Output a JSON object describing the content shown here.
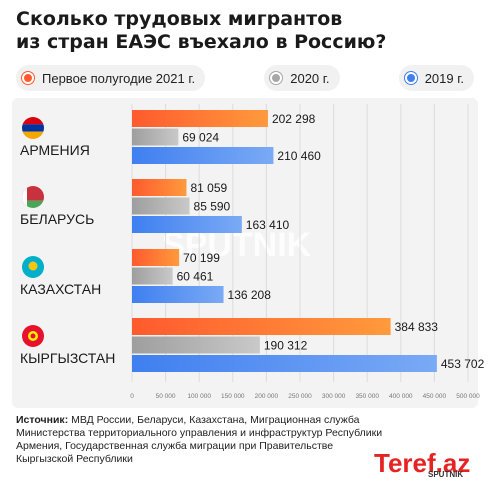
{
  "title": {
    "line1": "Сколько трудовых мигрантов",
    "line2": "из стран ЕАЭС въехало в Россию?"
  },
  "legend": [
    {
      "label": "Первое полугодие 2021 г.",
      "color": "#ff5a2e"
    },
    {
      "label": "2020 г.",
      "color": "#a7a7a7"
    },
    {
      "label": "2019 г.",
      "color": "#3f7ff0"
    }
  ],
  "colors": {
    "series_2021": "#ff5a2e",
    "series_2021_light": "#ff9a3c",
    "series_2020": "#9e9e9e",
    "series_2020_light": "#c9c9c9",
    "series_2019": "#3f7ff0",
    "series_2019_light": "#7aaaf5"
  },
  "watermark": "SPUTNIK",
  "source": {
    "label": "Источник:",
    "text": "МВД России, Беларуси, Казахстана, Миграционная служба Министерства территориального управления и инфраструктур Республики Армения, Государственная служба миграции при Правительстве Кыргызской Республики"
  },
  "logo": {
    "brand": "Teref.az",
    "sub": "SPUTNIK"
  },
  "chart_data": {
    "type": "bar",
    "orientation": "horizontal",
    "categories": [
      "АРМЕНИЯ",
      "БЕЛАРУСЬ",
      "КАЗАХСТАН",
      "КЫРГЫЗСТАН"
    ],
    "flags": [
      "armenia-flag-icon",
      "belarus-flag-icon",
      "kazakhstan-flag-icon",
      "kyrgyzstan-flag-icon"
    ],
    "series": [
      {
        "name": "Первое полугодие 2021 г.",
        "values": [
          202298,
          81059,
          70199,
          384833
        ],
        "labels": [
          "202 298",
          "81 059",
          "70 199",
          "384 833"
        ]
      },
      {
        "name": "2020 г.",
        "values": [
          69024,
          85590,
          60461,
          190312
        ],
        "labels": [
          "69 024",
          "85 590",
          "60 461",
          "190 312"
        ]
      },
      {
        "name": "2019 г.",
        "values": [
          210460,
          163410,
          136208,
          453702
        ],
        "labels": [
          "210 460",
          "163 410",
          "136 208",
          "453 702"
        ]
      }
    ],
    "xlim": [
      0,
      500000
    ],
    "ticks": [
      0,
      50000,
      100000,
      150000,
      200000,
      250000,
      300000,
      350000,
      400000,
      450000,
      500000
    ],
    "tick_labels": [
      "0",
      "50 000",
      "100 000",
      "150 000",
      "200 000",
      "250 000",
      "300 000",
      "350 000",
      "400 000",
      "450 000",
      "500 000"
    ],
    "xlabel": "",
    "ylabel": "",
    "grid": true,
    "legend": "top"
  }
}
